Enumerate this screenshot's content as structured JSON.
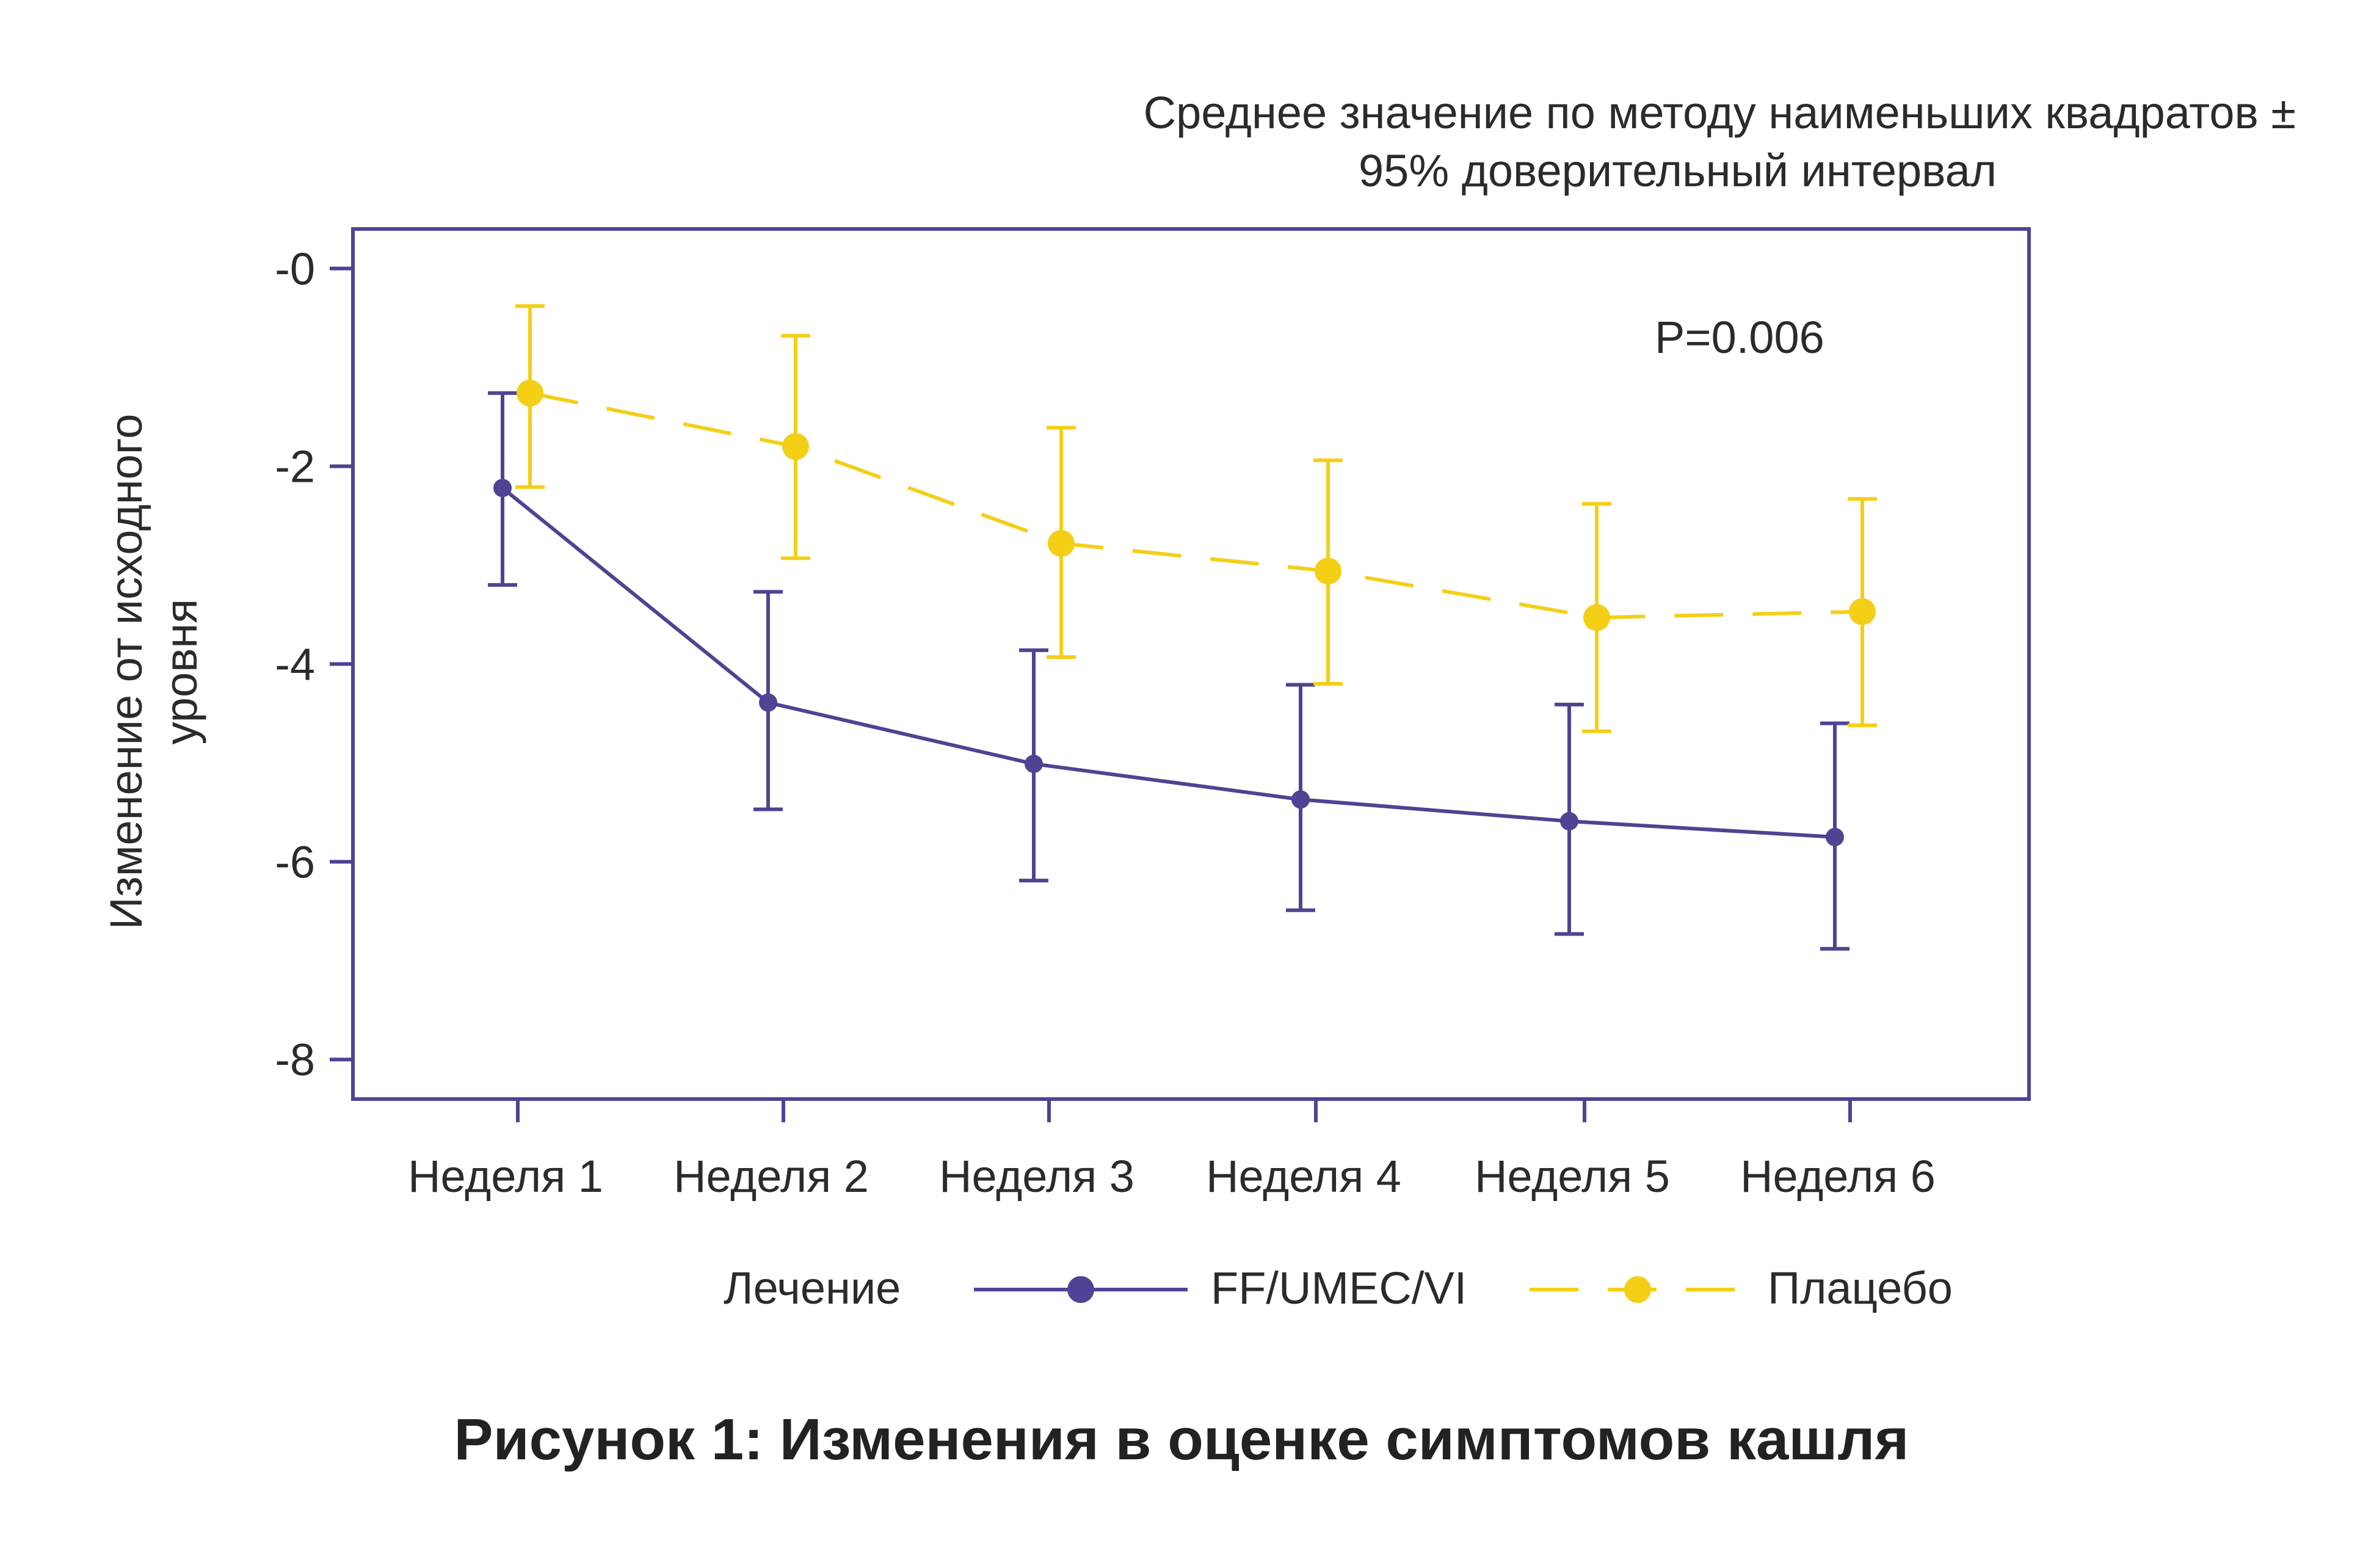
{
  "chart_data": {
    "type": "line",
    "subtitle_lines": [
      "Среднее значение по методу наименьших квадратов ±",
      "95% доверительный интервал"
    ],
    "annotation": "P=0.006",
    "ylabel_lines": [
      "Изменение от исходного",
      "уровня"
    ],
    "ylim": [
      -8.4,
      0.4
    ],
    "yticks": [
      0,
      -2,
      -4,
      -6,
      -8
    ],
    "ytick_labels": [
      "-0",
      "-2",
      "-4",
      "-6",
      "-8"
    ],
    "categories": [
      "Неделя 1",
      "Неделя 2",
      "Неделя 3",
      "Неделя 4",
      "Неделя 5",
      "Неделя 6"
    ],
    "series": [
      {
        "name": "FF/UMEC/VI",
        "color": "#4f4393",
        "style": "solid",
        "values": [
          -2.22,
          -4.39,
          -5.01,
          -5.37,
          -5.59,
          -5.75
        ],
        "ci_low": [
          -3.2,
          -5.47,
          -6.19,
          -6.49,
          -6.73,
          -6.88
        ],
        "ci_high": [
          -1.26,
          -3.27,
          -3.86,
          -4.21,
          -4.41,
          -4.6
        ]
      },
      {
        "name": "Плацебо",
        "color": "#f4cf16",
        "style": "dashed",
        "values": [
          -1.26,
          -1.8,
          -2.78,
          -3.06,
          -3.53,
          -3.47
        ],
        "ci_low": [
          -2.21,
          -2.93,
          -3.93,
          -4.2,
          -4.68,
          -4.62
        ],
        "ci_high": [
          -0.38,
          -0.68,
          -1.61,
          -1.94,
          -2.38,
          -2.33
        ]
      }
    ],
    "legend_title": "Лечение",
    "legend_position": "bottom"
  },
  "caption": "Рисунок 1: Изменения в оценке симптомов кашля",
  "colors": {
    "frame": "#4f4393",
    "text": "#2b2b2b"
  }
}
